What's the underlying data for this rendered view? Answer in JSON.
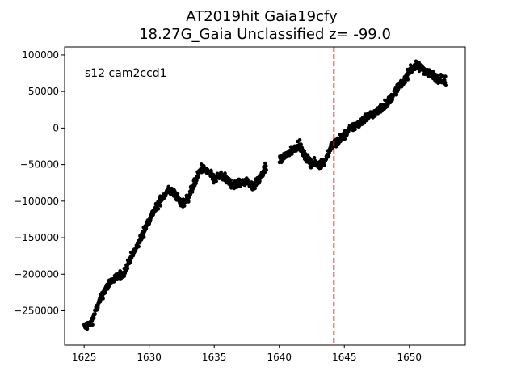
{
  "chart_data": {
    "type": "scatter",
    "title_line1": "AT2019hit  Gaia19cfy",
    "title_line2": "18.27G_Gaia Unclassified z= -99.0",
    "xlabel": "",
    "ylabel": "",
    "annotation": "s12 cam2ccd1",
    "xlim": [
      1623.5,
      1654.3
    ],
    "ylim": [
      -297000,
      111000
    ],
    "xticks": [
      1625,
      1630,
      1635,
      1640,
      1645,
      1650
    ],
    "yticks": [
      -250000,
      -200000,
      -150000,
      -100000,
      -50000,
      0,
      50000,
      100000
    ],
    "ytick_labels": [
      "−250000",
      "−200000",
      "−150000",
      "−100000",
      "−50000",
      "0",
      "50000",
      "100000"
    ],
    "vline": {
      "x": 1644.2,
      "color": "#d62728",
      "style": "dashed"
    },
    "marker_color": "#000000",
    "gaps": [
      [
        1639.0,
        1640.0
      ]
    ],
    "series": [
      {
        "x": [
          1625.0,
          1625.5,
          1626.0,
          1626.5,
          1627.0,
          1627.5,
          1628.0,
          1628.5,
          1629.0,
          1629.5,
          1630.0,
          1630.5,
          1631.0,
          1631.5,
          1632.0,
          1632.5,
          1633.0,
          1633.5,
          1634.0,
          1634.5,
          1635.0,
          1635.5,
          1636.0,
          1636.5,
          1637.0,
          1637.5,
          1638.0,
          1638.5,
          1639.0,
          1640.0,
          1640.5,
          1641.0,
          1641.5,
          1642.0,
          1642.5,
          1643.0,
          1643.5,
          1644.0,
          1644.5,
          1645.0,
          1645.5,
          1646.0,
          1646.5,
          1647.0,
          1647.5,
          1648.0,
          1648.5,
          1649.0,
          1649.5,
          1650.0,
          1650.5,
          1651.0,
          1651.5,
          1652.0,
          1652.5,
          1652.8
        ],
        "y": [
          -272000,
          -268000,
          -245000,
          -225000,
          -210000,
          -205000,
          -200000,
          -180000,
          -165000,
          -145000,
          -125000,
          -110000,
          -95000,
          -85000,
          -90000,
          -105000,
          -95000,
          -75000,
          -55000,
          -60000,
          -70000,
          -65000,
          -72000,
          -78000,
          -75000,
          -72000,
          -80000,
          -70000,
          -52000,
          -45000,
          -38000,
          -30000,
          -22000,
          -40000,
          -48000,
          -50000,
          -45000,
          -25000,
          -18000,
          -10000,
          0,
          5000,
          12000,
          18000,
          22000,
          30000,
          38000,
          52000,
          62000,
          78000,
          85000,
          82000,
          75000,
          70000,
          66000,
          62000
        ]
      }
    ]
  }
}
